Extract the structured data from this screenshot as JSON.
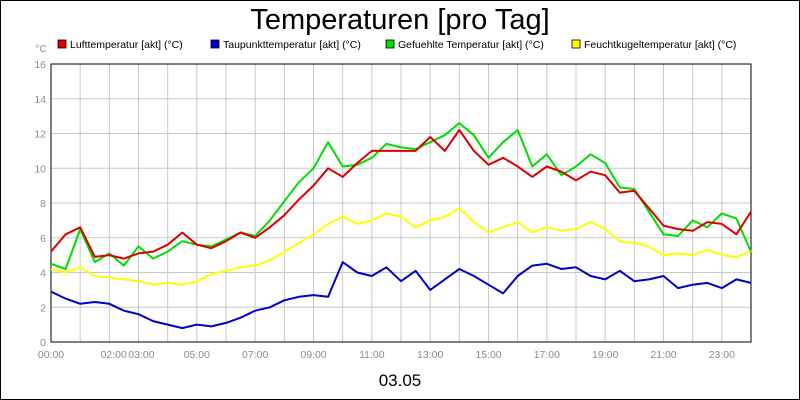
{
  "chart_data": {
    "type": "line",
    "title": "Temperaturen [pro Tag]",
    "y_unit": "°C",
    "date_label": "03.05",
    "xlabel": "",
    "ylabel": "",
    "ylim": [
      0,
      16
    ],
    "y_ticks": [
      0,
      2,
      4,
      6,
      8,
      10,
      12,
      14,
      16
    ],
    "xlim": [
      0,
      24
    ],
    "x_ticks": [
      {
        "h": 0,
        "label": "00:00"
      },
      {
        "h": 2.15,
        "label": "02:00"
      },
      {
        "h": 3.1,
        "label": "03:00"
      },
      {
        "h": 5.0,
        "label": "05:00"
      },
      {
        "h": 7.0,
        "label": "07:00"
      },
      {
        "h": 9.0,
        "label": "09:00"
      },
      {
        "h": 11.0,
        "label": "11:00"
      },
      {
        "h": 13.0,
        "label": "13:00"
      },
      {
        "h": 15.0,
        "label": "15:00"
      },
      {
        "h": 17.0,
        "label": "17:00"
      },
      {
        "h": 19.0,
        "label": "19:00"
      },
      {
        "h": 21.0,
        "label": "21:00"
      },
      {
        "h": 23.0,
        "label": "23:00"
      }
    ],
    "grid": true,
    "legend_position": "top",
    "x": [
      0,
      0.5,
      1,
      1.5,
      2,
      2.5,
      3,
      3.5,
      4,
      4.5,
      5,
      5.5,
      6,
      6.5,
      7,
      7.5,
      8,
      8.5,
      9,
      9.5,
      10,
      10.5,
      11,
      11.5,
      12,
      12.5,
      13,
      13.5,
      14,
      14.5,
      15,
      15.5,
      16,
      16.5,
      17,
      17.5,
      18,
      18.5,
      19,
      19.5,
      20,
      20.5,
      21,
      21.5,
      22,
      22.5,
      23,
      23.5,
      24
    ],
    "series": [
      {
        "name": "Lufttemperatur [akt] (°C)",
        "color": "#dd0000",
        "values": [
          5.2,
          6.2,
          6.6,
          4.9,
          5.0,
          4.8,
          5.1,
          5.2,
          5.6,
          6.3,
          5.6,
          5.4,
          5.8,
          6.3,
          6.0,
          6.6,
          7.3,
          8.2,
          9.0,
          10.0,
          9.5,
          10.3,
          11.0,
          11.0,
          11.0,
          11.0,
          11.8,
          11.0,
          12.2,
          11.0,
          10.2,
          10.6,
          10.1,
          9.5,
          10.1,
          9.8,
          9.3,
          9.8,
          9.6,
          8.6,
          8.7,
          7.7,
          6.7,
          6.5,
          6.4,
          6.9,
          6.8,
          6.2,
          7.5
        ]
      },
      {
        "name": "Taupunkttemperatur [akt] (°C)",
        "color": "#0000cc",
        "values": [
          2.9,
          2.5,
          2.2,
          2.3,
          2.2,
          1.8,
          1.6,
          1.2,
          1.0,
          0.8,
          1.0,
          0.9,
          1.1,
          1.4,
          1.8,
          2.0,
          2.4,
          2.6,
          2.7,
          2.6,
          4.6,
          4.0,
          3.8,
          4.3,
          3.5,
          4.1,
          3.0,
          3.6,
          4.2,
          3.8,
          3.3,
          2.8,
          3.8,
          4.4,
          4.5,
          4.2,
          4.3,
          3.8,
          3.6,
          4.1,
          3.5,
          3.6,
          3.8,
          3.1,
          3.3,
          3.4,
          3.1,
          3.6,
          3.4
        ]
      },
      {
        "name": "Gefuehlte Temperatur [akt] (°C)",
        "color": "#00dd00",
        "values": [
          4.5,
          4.2,
          6.5,
          4.6,
          5.1,
          4.4,
          5.5,
          4.8,
          5.2,
          5.8,
          5.6,
          5.5,
          5.9,
          6.3,
          6.1,
          7.0,
          8.1,
          9.2,
          10.0,
          11.5,
          10.1,
          10.2,
          10.6,
          11.4,
          11.2,
          11.1,
          11.5,
          11.9,
          12.6,
          11.9,
          10.6,
          11.5,
          12.2,
          10.1,
          10.8,
          9.6,
          10.1,
          10.8,
          10.3,
          8.9,
          8.8,
          7.5,
          6.2,
          6.1,
          7.0,
          6.6,
          7.4,
          7.1,
          5.2
        ]
      },
      {
        "name": "Feuchtkugeltemperatur [akt] (°C)",
        "color": "#ffff00",
        "values": [
          4.2,
          4.0,
          4.3,
          3.8,
          3.7,
          3.6,
          3.5,
          3.3,
          3.4,
          3.3,
          3.5,
          3.9,
          4.1,
          4.3,
          4.4,
          4.7,
          5.2,
          5.7,
          6.2,
          6.8,
          7.2,
          6.8,
          7.0,
          7.4,
          7.2,
          6.6,
          7.0,
          7.2,
          7.7,
          6.9,
          6.3,
          6.6,
          6.9,
          6.3,
          6.6,
          6.4,
          6.5,
          6.9,
          6.5,
          5.8,
          5.7,
          5.5,
          5.0,
          5.1,
          5.0,
          5.3,
          5.0,
          4.9,
          5.2
        ]
      }
    ]
  }
}
